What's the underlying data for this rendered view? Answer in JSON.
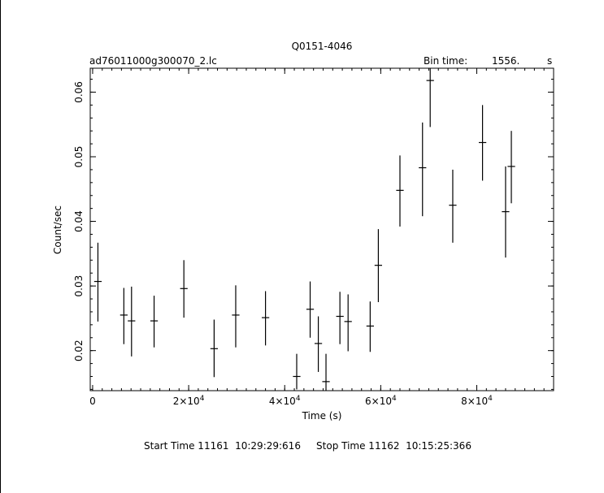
{
  "chart_data": {
    "type": "scatter",
    "title": "Q0151-4046",
    "file_label": "ad76011000g300070_2.lc",
    "bin_time_label": "Bin time:",
    "bin_time_value": "1556.",
    "bin_time_unit": "s",
    "xlabel": "Time (s)",
    "ylabel": "Count/sec",
    "footer": "Start Time 11161  10:29:29:616     Stop Time 11162  10:15:25:366",
    "xlim": [
      -500,
      96000
    ],
    "ylim": [
      0.0138,
      0.0637
    ],
    "x_ticks": [
      {
        "value": 0,
        "mant": "0",
        "exp": ""
      },
      {
        "value": 20000,
        "mant": "2×10",
        "exp": "4"
      },
      {
        "value": 40000,
        "mant": "4×10",
        "exp": "4"
      },
      {
        "value": 60000,
        "mant": "6×10",
        "exp": "4"
      },
      {
        "value": 80000,
        "mant": "8×10",
        "exp": "4"
      }
    ],
    "x_minor_step": 2000,
    "y_ticks": [
      {
        "value": 0.02,
        "label": "0.02"
      },
      {
        "value": 0.03,
        "label": "0.03"
      },
      {
        "value": 0.04,
        "label": "0.04"
      },
      {
        "value": 0.05,
        "label": "0.05"
      },
      {
        "value": 0.06,
        "label": "0.06"
      }
    ],
    "y_minor_step": 0.002,
    "xerr": 780,
    "points": [
      {
        "x": 1100,
        "y": 0.0307,
        "ylo": 0.0245,
        "yhi": 0.0367
      },
      {
        "x": 6500,
        "y": 0.0255,
        "ylo": 0.021,
        "yhi": 0.0297
      },
      {
        "x": 8100,
        "y": 0.0246,
        "ylo": 0.0191,
        "yhi": 0.0299
      },
      {
        "x": 12800,
        "y": 0.0246,
        "ylo": 0.0205,
        "yhi": 0.0285
      },
      {
        "x": 19000,
        "y": 0.0296,
        "ylo": 0.0251,
        "yhi": 0.034
      },
      {
        "x": 25300,
        "y": 0.0203,
        "ylo": 0.0159,
        "yhi": 0.0248
      },
      {
        "x": 29800,
        "y": 0.0255,
        "ylo": 0.0205,
        "yhi": 0.0301
      },
      {
        "x": 36000,
        "y": 0.0251,
        "ylo": 0.0208,
        "yhi": 0.0292
      },
      {
        "x": 42500,
        "y": 0.016,
        "ylo": 0.014,
        "yhi": 0.0195
      },
      {
        "x": 45300,
        "y": 0.0264,
        "ylo": 0.022,
        "yhi": 0.0307
      },
      {
        "x": 47000,
        "y": 0.0211,
        "ylo": 0.0167,
        "yhi": 0.0253
      },
      {
        "x": 48600,
        "y": 0.0152,
        "ylo": 0.0138,
        "yhi": 0.0195
      },
      {
        "x": 51500,
        "y": 0.0253,
        "ylo": 0.021,
        "yhi": 0.0291
      },
      {
        "x": 53200,
        "y": 0.0245,
        "ylo": 0.0199,
        "yhi": 0.0287
      },
      {
        "x": 57800,
        "y": 0.0238,
        "ylo": 0.0198,
        "yhi": 0.0276
      },
      {
        "x": 59500,
        "y": 0.0332,
        "ylo": 0.0275,
        "yhi": 0.0388
      },
      {
        "x": 64000,
        "y": 0.0448,
        "ylo": 0.0392,
        "yhi": 0.0502
      },
      {
        "x": 68700,
        "y": 0.0483,
        "ylo": 0.0408,
        "yhi": 0.0553
      },
      {
        "x": 70300,
        "y": 0.0618,
        "ylo": 0.0546,
        "yhi": 0.0637
      },
      {
        "x": 75000,
        "y": 0.0425,
        "ylo": 0.0367,
        "yhi": 0.048
      },
      {
        "x": 81200,
        "y": 0.0522,
        "ylo": 0.0463,
        "yhi": 0.058
      },
      {
        "x": 86000,
        "y": 0.0415,
        "ylo": 0.0344,
        "yhi": 0.0485
      },
      {
        "x": 87200,
        "y": 0.0485,
        "ylo": 0.0428,
        "yhi": 0.054
      }
    ]
  }
}
